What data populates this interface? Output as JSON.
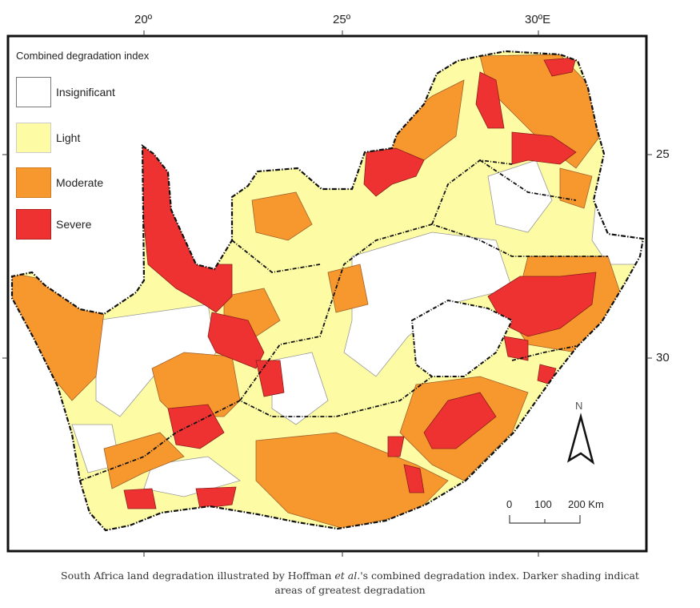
{
  "axes": {
    "top_ticks": [
      "20º",
      "25º",
      "30ºE"
    ],
    "right_ticks": [
      "25",
      "30"
    ]
  },
  "legend": {
    "title": "Combined degradation index",
    "items": [
      {
        "label": "Insignificant",
        "color": "#ffffff"
      },
      {
        "label": "Light",
        "color": "#fdfca4"
      },
      {
        "label": "Moderate",
        "color": "#f7982f"
      },
      {
        "label": "Severe",
        "color": "#ee3232"
      }
    ]
  },
  "north_arrow": {
    "label": "N"
  },
  "scale_bar": {
    "labels": [
      "0",
      "100",
      "200 Km"
    ]
  },
  "caption": {
    "before_italic": "South Africa land degradation illustrated by Hoffman ",
    "italic": "et al.",
    "after_italic": "'s combined degradation index. Darker shading indicat",
    "line2": "areas of greatest degradation"
  }
}
